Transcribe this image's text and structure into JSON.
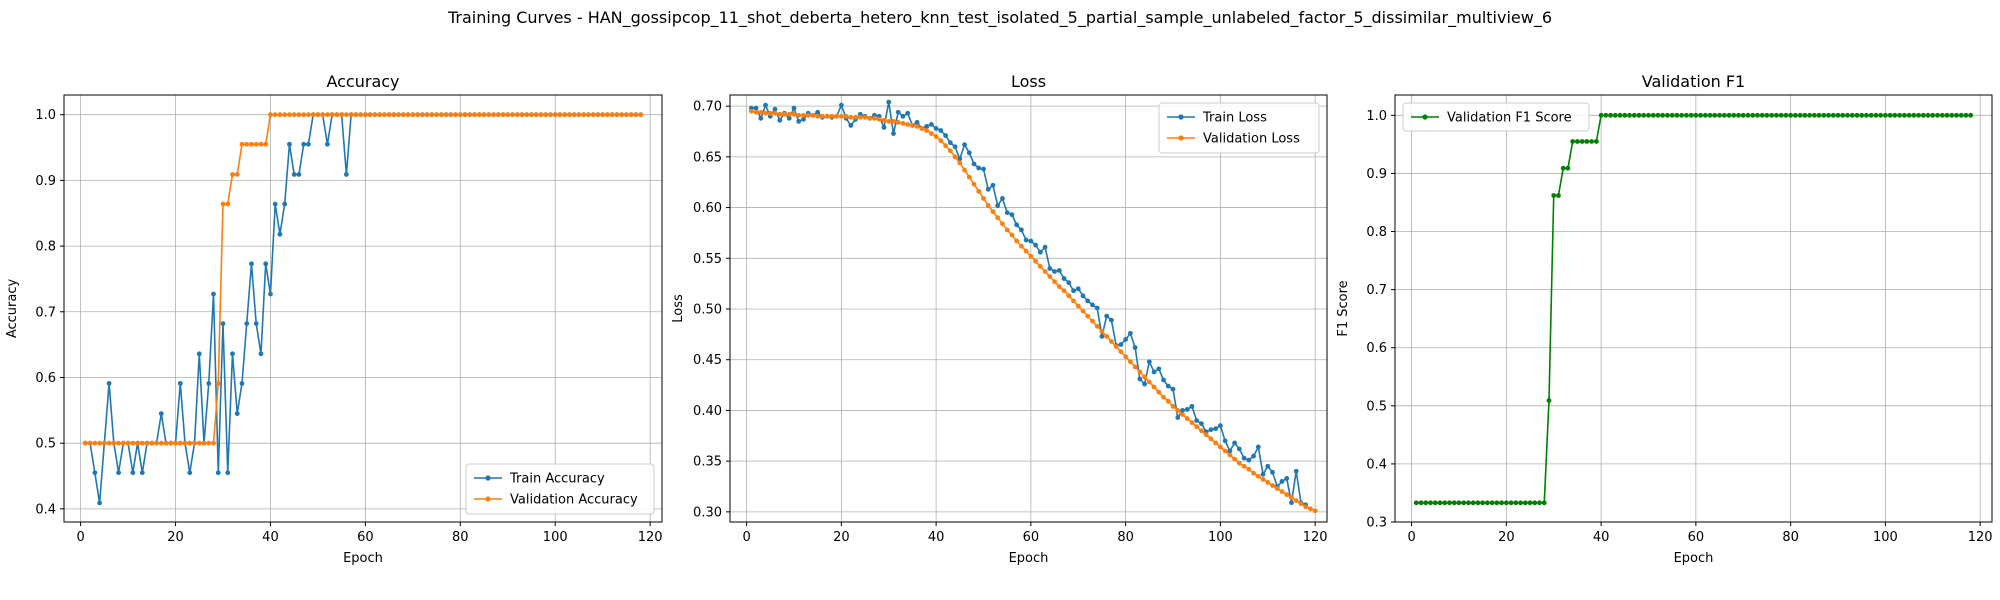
{
  "figure": {
    "title": "Training Curves - HAN_gossipcop_11_shot_deberta_hetero_knn_test_isolated_5_partial_sample_unlabeled_factor_5_dissimilar_multiview_6"
  },
  "colors": {
    "train": "#1f77b4",
    "validation": "#ff7f0e",
    "f1": "#008000",
    "grid": "#b0b0b0"
  },
  "chart_data": [
    {
      "type": "line",
      "title": "Accuracy",
      "xlabel": "Epoch",
      "ylabel": "Accuracy",
      "xlim": [
        -3.5,
        122.5
      ],
      "ylim": [
        0.38,
        1.03
      ],
      "xticks": [
        0,
        20,
        40,
        60,
        80,
        100,
        120
      ],
      "yticks": [
        0.4,
        0.5,
        0.6,
        0.7,
        0.8,
        0.9,
        1.0
      ],
      "ytick_labels": [
        "0.4",
        "0.5",
        "0.6",
        "0.7",
        "0.8",
        "0.9",
        "1.0"
      ],
      "grid": true,
      "legend_loc": "lower-right",
      "series": [
        {
          "name": "Train Accuracy",
          "color_key": "train",
          "x_start": 1,
          "values": [
            0.5,
            0.5,
            0.455,
            0.409,
            0.5,
            0.591,
            0.5,
            0.455,
            0.5,
            0.5,
            0.455,
            0.5,
            0.455,
            0.5,
            0.5,
            0.5,
            0.545,
            0.5,
            0.5,
            0.5,
            0.591,
            0.5,
            0.455,
            0.5,
            0.636,
            0.5,
            0.591,
            0.727,
            0.455,
            0.682,
            0.455,
            0.636,
            0.545,
            0.591,
            0.682,
            0.773,
            0.682,
            0.636,
            0.773,
            0.727,
            0.864,
            0.818,
            0.864,
            0.955,
            0.909,
            0.909,
            0.955,
            0.955,
            1.0,
            1.0,
            1.0,
            0.955,
            1.0,
            1.0,
            1.0,
            0.909,
            1.0,
            1.0,
            1.0,
            1.0,
            1.0,
            1.0,
            1.0,
            1.0,
            1.0,
            1.0,
            1.0,
            1.0,
            1.0,
            1.0,
            1.0,
            1.0,
            1.0,
            1.0,
            1.0,
            1.0,
            1.0,
            1.0,
            1.0,
            1.0,
            1.0,
            1.0,
            1.0,
            1.0,
            1.0,
            1.0,
            1.0,
            1.0,
            1.0,
            1.0,
            1.0,
            1.0,
            1.0,
            1.0,
            1.0,
            1.0,
            1.0,
            1.0,
            1.0,
            1.0,
            1.0,
            1.0,
            1.0,
            1.0,
            1.0,
            1.0,
            1.0,
            1.0,
            1.0,
            1.0,
            1.0,
            1.0,
            1.0,
            1.0,
            1.0,
            1.0,
            1.0,
            1.0
          ]
        },
        {
          "name": "Validation Accuracy",
          "color_key": "validation",
          "x_start": 1,
          "values": [
            0.5,
            0.5,
            0.5,
            0.5,
            0.5,
            0.5,
            0.5,
            0.5,
            0.5,
            0.5,
            0.5,
            0.5,
            0.5,
            0.5,
            0.5,
            0.5,
            0.5,
            0.5,
            0.5,
            0.5,
            0.5,
            0.5,
            0.5,
            0.5,
            0.5,
            0.5,
            0.5,
            0.5,
            0.591,
            0.864,
            0.864,
            0.909,
            0.909,
            0.955,
            0.955,
            0.955,
            0.955,
            0.955,
            0.955,
            1.0,
            1.0,
            1.0,
            1.0,
            1.0,
            1.0,
            1.0,
            1.0,
            1.0,
            1.0,
            1.0,
            1.0,
            1.0,
            1.0,
            1.0,
            1.0,
            1.0,
            1.0,
            1.0,
            1.0,
            1.0,
            1.0,
            1.0,
            1.0,
            1.0,
            1.0,
            1.0,
            1.0,
            1.0,
            1.0,
            1.0,
            1.0,
            1.0,
            1.0,
            1.0,
            1.0,
            1.0,
            1.0,
            1.0,
            1.0,
            1.0,
            1.0,
            1.0,
            1.0,
            1.0,
            1.0,
            1.0,
            1.0,
            1.0,
            1.0,
            1.0,
            1.0,
            1.0,
            1.0,
            1.0,
            1.0,
            1.0,
            1.0,
            1.0,
            1.0,
            1.0,
            1.0,
            1.0,
            1.0,
            1.0,
            1.0,
            1.0,
            1.0,
            1.0,
            1.0,
            1.0,
            1.0,
            1.0,
            1.0,
            1.0,
            1.0,
            1.0,
            1.0,
            1.0
          ]
        }
      ]
    },
    {
      "type": "line",
      "title": "Loss",
      "xlabel": "Epoch",
      "ylabel": "Loss",
      "xlim": [
        -3.5,
        122.5
      ],
      "ylim": [
        0.29,
        0.711
      ],
      "xticks": [
        0,
        20,
        40,
        60,
        80,
        100,
        120
      ],
      "yticks": [
        0.3,
        0.35,
        0.4,
        0.45,
        0.5,
        0.55,
        0.6,
        0.65,
        0.7
      ],
      "ytick_labels": [
        "0.30",
        "0.35",
        "0.40",
        "0.45",
        "0.50",
        "0.55",
        "0.60",
        "0.65",
        "0.70"
      ],
      "grid": true,
      "legend_loc": "top-right",
      "series": [
        {
          "name": "Train Loss",
          "color_key": "train",
          "x_start": 1,
          "values": [
            0.698,
            0.698,
            0.688,
            0.701,
            0.69,
            0.697,
            0.686,
            0.693,
            0.688,
            0.698,
            0.685,
            0.687,
            0.693,
            0.691,
            0.694,
            0.689,
            0.69,
            0.689,
            0.69,
            0.701,
            0.688,
            0.681,
            0.687,
            0.692,
            0.69,
            0.688,
            0.691,
            0.69,
            0.679,
            0.704,
            0.673,
            0.694,
            0.69,
            0.693,
            0.681,
            0.684,
            0.678,
            0.68,
            0.682,
            0.678,
            0.676,
            0.671,
            0.664,
            0.66,
            0.648,
            0.662,
            0.654,
            0.643,
            0.639,
            0.638,
            0.618,
            0.622,
            0.602,
            0.609,
            0.595,
            0.593,
            0.583,
            0.578,
            0.568,
            0.567,
            0.563,
            0.556,
            0.561,
            0.54,
            0.537,
            0.538,
            0.53,
            0.526,
            0.518,
            0.52,
            0.513,
            0.508,
            0.504,
            0.501,
            0.473,
            0.493,
            0.489,
            0.464,
            0.465,
            0.47,
            0.476,
            0.462,
            0.431,
            0.426,
            0.448,
            0.438,
            0.441,
            0.43,
            0.424,
            0.421,
            0.393,
            0.4,
            0.401,
            0.404,
            0.39,
            0.387,
            0.379,
            0.381,
            0.382,
            0.385,
            0.37,
            0.36,
            0.368,
            0.362,
            0.353,
            0.351,
            0.355,
            0.364,
            0.337,
            0.345,
            0.339,
            0.325,
            0.33,
            0.333,
            0.309,
            0.34,
            0.309,
            0.307
          ]
        },
        {
          "name": "Validation Loss",
          "color_key": "validation",
          "x_start": 1,
          "values": [
            0.695,
            0.694,
            0.694,
            0.693,
            0.693,
            0.693,
            0.692,
            0.692,
            0.692,
            0.692,
            0.691,
            0.691,
            0.691,
            0.691,
            0.69,
            0.69,
            0.69,
            0.69,
            0.69,
            0.69,
            0.69,
            0.689,
            0.689,
            0.689,
            0.689,
            0.688,
            0.688,
            0.687,
            0.686,
            0.685,
            0.685,
            0.684,
            0.683,
            0.682,
            0.681,
            0.68,
            0.678,
            0.676,
            0.673,
            0.67,
            0.666,
            0.661,
            0.656,
            0.65,
            0.644,
            0.637,
            0.63,
            0.623,
            0.616,
            0.609,
            0.602,
            0.596,
            0.59,
            0.584,
            0.578,
            0.573,
            0.567,
            0.562,
            0.557,
            0.552,
            0.547,
            0.542,
            0.537,
            0.532,
            0.527,
            0.522,
            0.518,
            0.513,
            0.508,
            0.503,
            0.498,
            0.493,
            0.488,
            0.483,
            0.478,
            0.473,
            0.468,
            0.463,
            0.458,
            0.453,
            0.448,
            0.443,
            0.438,
            0.433,
            0.428,
            0.423,
            0.418,
            0.413,
            0.409,
            0.404,
            0.4,
            0.396,
            0.392,
            0.388,
            0.384,
            0.38,
            0.376,
            0.372,
            0.368,
            0.364,
            0.36,
            0.356,
            0.352,
            0.348,
            0.345,
            0.342,
            0.338,
            0.335,
            0.332,
            0.329,
            0.326,
            0.323,
            0.32,
            0.317,
            0.314,
            0.311,
            0.308,
            0.305,
            0.303,
            0.301
          ]
        }
      ]
    },
    {
      "type": "line",
      "title": "Validation F1",
      "xlabel": "Epoch",
      "ylabel": "F1 Score",
      "xlim": [
        -3.5,
        122.5
      ],
      "ylim": [
        0.3,
        1.035
      ],
      "xticks": [
        0,
        20,
        40,
        60,
        80,
        100,
        120
      ],
      "yticks": [
        0.3,
        0.4,
        0.5,
        0.6,
        0.7,
        0.8,
        0.9,
        1.0
      ],
      "ytick_labels": [
        "0.3",
        "0.4",
        "0.5",
        "0.6",
        "0.7",
        "0.8",
        "0.9",
        "1.0"
      ],
      "grid": true,
      "legend_loc": "top-left",
      "series": [
        {
          "name": "Validation F1 Score",
          "color_key": "f1",
          "x_start": 1,
          "values": [
            0.333,
            0.333,
            0.333,
            0.333,
            0.333,
            0.333,
            0.333,
            0.333,
            0.333,
            0.333,
            0.333,
            0.333,
            0.333,
            0.333,
            0.333,
            0.333,
            0.333,
            0.333,
            0.333,
            0.333,
            0.333,
            0.333,
            0.333,
            0.333,
            0.333,
            0.333,
            0.333,
            0.333,
            0.509,
            0.862,
            0.862,
            0.909,
            0.909,
            0.955,
            0.955,
            0.955,
            0.955,
            0.955,
            0.955,
            1.0,
            1.0,
            1.0,
            1.0,
            1.0,
            1.0,
            1.0,
            1.0,
            1.0,
            1.0,
            1.0,
            1.0,
            1.0,
            1.0,
            1.0,
            1.0,
            1.0,
            1.0,
            1.0,
            1.0,
            1.0,
            1.0,
            1.0,
            1.0,
            1.0,
            1.0,
            1.0,
            1.0,
            1.0,
            1.0,
            1.0,
            1.0,
            1.0,
            1.0,
            1.0,
            1.0,
            1.0,
            1.0,
            1.0,
            1.0,
            1.0,
            1.0,
            1.0,
            1.0,
            1.0,
            1.0,
            1.0,
            1.0,
            1.0,
            1.0,
            1.0,
            1.0,
            1.0,
            1.0,
            1.0,
            1.0,
            1.0,
            1.0,
            1.0,
            1.0,
            1.0,
            1.0,
            1.0,
            1.0,
            1.0,
            1.0,
            1.0,
            1.0,
            1.0,
            1.0,
            1.0,
            1.0,
            1.0,
            1.0,
            1.0,
            1.0,
            1.0,
            1.0,
            1.0
          ]
        }
      ]
    }
  ]
}
